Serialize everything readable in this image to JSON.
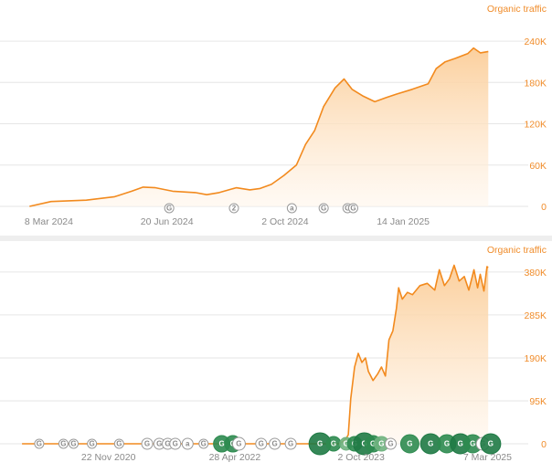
{
  "chart_data": [
    {
      "type": "area",
      "legend": "Organic traffic",
      "legend_position": "top-right",
      "ylabel_position": "right",
      "grid": true,
      "ylim": [
        0,
        260000
      ],
      "yticks": [
        {
          "value": 0,
          "label": "0"
        },
        {
          "value": 60000,
          "label": "60K"
        },
        {
          "value": 120000,
          "label": "120K"
        },
        {
          "value": 180000,
          "label": "180K"
        },
        {
          "value": 240000,
          "label": "240K"
        }
      ],
      "xlim": [
        "2024-01-25",
        "2025-04-10"
      ],
      "xticks": [
        {
          "value": "2024-03-08",
          "label": "8 Mar 2024"
        },
        {
          "value": "2024-06-20",
          "label": "20 Jun 2024"
        },
        {
          "value": "2024-10-02",
          "label": "2 Oct 2024"
        },
        {
          "value": "2025-01-14",
          "label": "14 Jan 2025"
        }
      ],
      "series": [
        {
          "points": [
            [
              "2024-02-20",
              0
            ],
            [
              "2024-03-10",
              7000
            ],
            [
              "2024-04-10",
              9000
            ],
            [
              "2024-05-05",
              14000
            ],
            [
              "2024-05-20",
              22000
            ],
            [
              "2024-05-30",
              28000
            ],
            [
              "2024-06-10",
              27000
            ],
            [
              "2024-06-25",
              22000
            ],
            [
              "2024-07-15",
              20000
            ],
            [
              "2024-07-25",
              17000
            ],
            [
              "2024-08-05",
              20000
            ],
            [
              "2024-08-20",
              27000
            ],
            [
              "2024-09-01",
              24000
            ],
            [
              "2024-09-10",
              26000
            ],
            [
              "2024-09-20",
              32000
            ],
            [
              "2024-10-01",
              45000
            ],
            [
              "2024-10-12",
              60000
            ],
            [
              "2024-10-20",
              90000
            ],
            [
              "2024-10-28",
              110000
            ],
            [
              "2024-11-05",
              145000
            ],
            [
              "2024-11-15",
              172000
            ],
            [
              "2024-11-23",
              185000
            ],
            [
              "2024-11-30",
              170000
            ],
            [
              "2024-12-10",
              160000
            ],
            [
              "2024-12-20",
              152000
            ],
            [
              "2024-12-30",
              158000
            ],
            [
              "2025-01-08",
              163000
            ],
            [
              "2025-01-22",
              170000
            ],
            [
              "2025-02-05",
              178000
            ],
            [
              "2025-02-12",
              200000
            ],
            [
              "2025-02-20",
              210000
            ],
            [
              "2025-03-01",
              215000
            ],
            [
              "2025-03-12",
              222000
            ],
            [
              "2025-03-17",
              230000
            ],
            [
              "2025-03-23",
              223000
            ],
            [
              "2025-03-30",
              225000
            ]
          ]
        }
      ],
      "annotations": [
        {
          "date": "2024-06-22",
          "letter": "G"
        },
        {
          "date": "2024-08-18",
          "letter": "2"
        },
        {
          "date": "2024-10-08",
          "letter": "a"
        },
        {
          "date": "2024-11-05",
          "letter": "G"
        },
        {
          "date": "2024-11-26",
          "letter": "G"
        },
        {
          "date": "2024-12-01",
          "letter": "G"
        }
      ]
    },
    {
      "type": "area",
      "legend": "Organic traffic",
      "legend_position": "top-right",
      "ylabel_position": "right",
      "grid": true,
      "ylim": [
        0,
        400000
      ],
      "yticks": [
        {
          "value": 0,
          "label": "0"
        },
        {
          "value": 95000,
          "label": "95K"
        },
        {
          "value": 190000,
          "label": "190K"
        },
        {
          "value": 285000,
          "label": "285K"
        },
        {
          "value": 380000,
          "label": "380K"
        }
      ],
      "xlim": [
        "2019-09-01",
        "2025-05-01"
      ],
      "xticks": [
        {
          "value": "2020-11-22",
          "label": "22 Nov 2020"
        },
        {
          "value": "2022-04-28",
          "label": "28 Apr 2022"
        },
        {
          "value": "2023-10-02",
          "label": "2 Oct 2023"
        },
        {
          "value": "2025-03-07",
          "label": "7 Mar 2025"
        }
      ],
      "series": [
        {
          "points": [
            [
              "2019-12-01",
              0
            ],
            [
              "2023-07-01",
              0
            ],
            [
              "2023-07-15",
              4000
            ],
            [
              "2023-08-01",
              12000
            ],
            [
              "2023-08-10",
              20000
            ],
            [
              "2023-08-20",
              100000
            ],
            [
              "2023-09-05",
              170000
            ],
            [
              "2023-09-20",
              200000
            ],
            [
              "2023-10-05",
              180000
            ],
            [
              "2023-10-20",
              190000
            ],
            [
              "2023-11-01",
              160000
            ],
            [
              "2023-11-20",
              140000
            ],
            [
              "2023-12-10",
              155000
            ],
            [
              "2023-12-25",
              170000
            ],
            [
              "2024-01-10",
              150000
            ],
            [
              "2024-01-25",
              230000
            ],
            [
              "2024-02-10",
              250000
            ],
            [
              "2024-02-25",
              300000
            ],
            [
              "2024-03-05",
              345000
            ],
            [
              "2024-03-20",
              320000
            ],
            [
              "2024-04-10",
              335000
            ],
            [
              "2024-05-01",
              330000
            ],
            [
              "2024-06-01",
              350000
            ],
            [
              "2024-07-01",
              355000
            ],
            [
              "2024-08-01",
              340000
            ],
            [
              "2024-08-20",
              385000
            ],
            [
              "2024-09-10",
              350000
            ],
            [
              "2024-10-01",
              365000
            ],
            [
              "2024-10-20",
              395000
            ],
            [
              "2024-11-10",
              360000
            ],
            [
              "2024-12-01",
              370000
            ],
            [
              "2024-12-20",
              340000
            ],
            [
              "2025-01-10",
              385000
            ],
            [
              "2025-01-25",
              345000
            ],
            [
              "2025-02-05",
              375000
            ],
            [
              "2025-02-20",
              338000
            ],
            [
              "2025-03-05",
              392000
            ],
            [
              "2025-03-10",
              390000
            ]
          ]
        }
      ],
      "annotations": [
        {
          "date": "2020-02-10",
          "letter": "G",
          "color": "#ffffff",
          "radius": 5
        },
        {
          "date": "2020-05-20",
          "letter": "G",
          "color": "#ffffff",
          "radius": 5
        },
        {
          "date": "2020-07-01",
          "letter": "G",
          "color": "#ffffff",
          "radius": 5
        },
        {
          "date": "2020-09-15",
          "letter": "G",
          "color": "#ffffff",
          "radius": 5
        },
        {
          "date": "2021-01-05",
          "letter": "G",
          "color": "#ffffff",
          "radius": 5
        },
        {
          "date": "2021-05-01",
          "letter": "G",
          "color": "#ffffff",
          "radius": 6
        },
        {
          "date": "2021-06-20",
          "letter": "G",
          "color": "#ffffff",
          "radius": 6
        },
        {
          "date": "2021-07-25",
          "letter": "G",
          "color": "#ffffff",
          "radius": 6
        },
        {
          "date": "2021-08-25",
          "letter": "G",
          "color": "#ffffff",
          "radius": 6
        },
        {
          "date": "2021-10-15",
          "letter": "a",
          "color": "#ffffff",
          "radius": 6
        },
        {
          "date": "2021-12-20",
          "letter": "G",
          "color": "#ffffff",
          "radius": 5
        },
        {
          "date": "2022-03-05",
          "letter": "G",
          "color": "#2e8b50",
          "radius": 9
        },
        {
          "date": "2022-04-20",
          "letter": "G",
          "color": "#2e8b50",
          "radius": 9
        },
        {
          "date": "2022-05-15",
          "letter": "G",
          "color": "#ffffff",
          "radius": 7
        },
        {
          "date": "2022-08-15",
          "letter": "G",
          "color": "#ffffff",
          "radius": 6
        },
        {
          "date": "2022-10-10",
          "letter": "G",
          "color": "#ffffff",
          "radius": 6
        },
        {
          "date": "2022-12-15",
          "letter": "G",
          "color": "#ffffff",
          "radius": 6
        },
        {
          "date": "2023-04-15",
          "letter": "G",
          "color": "#1f7a45",
          "radius": 12
        },
        {
          "date": "2023-06-10",
          "letter": "G",
          "color": "#2e8b50",
          "radius": 8
        },
        {
          "date": "2023-08-01",
          "letter": "G",
          "color": "#6fb37f",
          "radius": 7
        },
        {
          "date": "2023-09-05",
          "letter": "G",
          "color": "#2e8b50",
          "radius": 8
        },
        {
          "date": "2023-10-15",
          "letter": "G",
          "color": "#1f7a45",
          "radius": 12
        },
        {
          "date": "2023-11-20",
          "letter": "G",
          "color": "#2e8b50",
          "radius": 9
        },
        {
          "date": "2023-12-25",
          "letter": "G",
          "color": "#6fb37f",
          "radius": 8
        },
        {
          "date": "2024-02-01",
          "letter": "G",
          "color": "#ffffff",
          "radius": 6
        },
        {
          "date": "2024-04-20",
          "letter": "G",
          "color": "#2e8b50",
          "radius": 10
        },
        {
          "date": "2024-07-15",
          "letter": "G",
          "color": "#1f7a45",
          "radius": 11
        },
        {
          "date": "2024-09-20",
          "letter": "G",
          "color": "#2e8b50",
          "radius": 10
        },
        {
          "date": "2024-11-15",
          "letter": "G",
          "color": "#1f7a45",
          "radius": 11
        },
        {
          "date": "2025-01-05",
          "letter": "G",
          "color": "#2e8b50",
          "radius": 10
        },
        {
          "date": "2025-02-15",
          "letter": "G",
          "color": "#ffffff",
          "radius": 7
        },
        {
          "date": "2025-03-20",
          "letter": "G",
          "color": "#1f7a45",
          "radius": 11
        }
      ]
    }
  ],
  "colors": {
    "line": "#f28a1e",
    "area_top": "#fbcd98",
    "area_bottom": "#fff6ec",
    "grid": "#e6e6e6",
    "legend": "#f08c2a",
    "tick": "#8a8a8a"
  }
}
